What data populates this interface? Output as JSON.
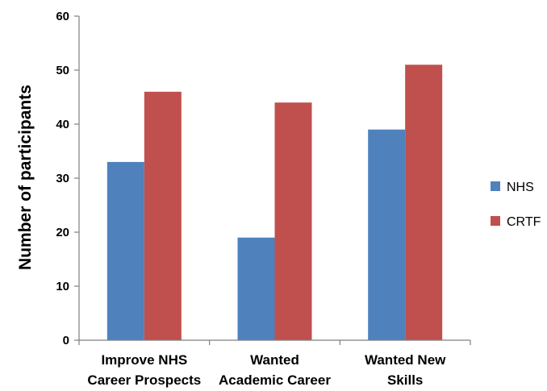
{
  "chart_data": {
    "type": "bar",
    "title": "",
    "xlabel": "",
    "ylabel": "Number of participants",
    "categories": [
      [
        "Improve NHS",
        "Career Prospects"
      ],
      [
        "Wanted",
        "Academic Career"
      ],
      [
        "Wanted New",
        "Skills"
      ]
    ],
    "series": [
      {
        "name": "NHS",
        "color": "#4f81bd",
        "values": [
          33,
          19,
          39
        ]
      },
      {
        "name": "CRTF",
        "color": "#c0504d",
        "values": [
          46,
          44,
          51
        ]
      }
    ],
    "ylim": [
      0,
      60
    ],
    "yticks": [
      0,
      10,
      20,
      30,
      40,
      50,
      60
    ],
    "grid": false,
    "legend_position": "right"
  }
}
